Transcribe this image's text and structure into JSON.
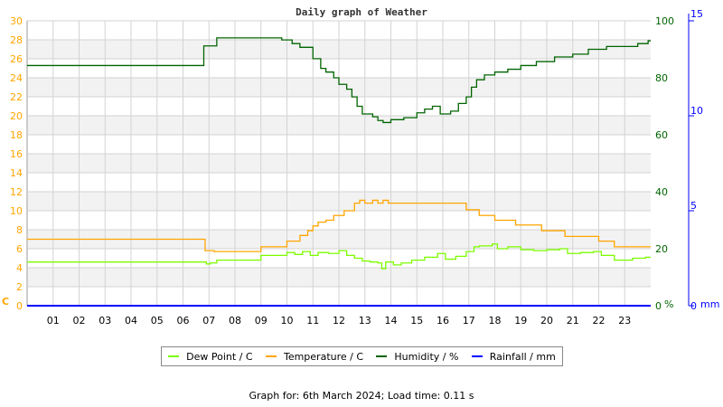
{
  "chart_data": {
    "type": "line",
    "title": "Daily graph of Weather",
    "x_ticks": [
      "01",
      "02",
      "03",
      "04",
      "05",
      "06",
      "07",
      "08",
      "09",
      "10",
      "11",
      "12",
      "13",
      "14",
      "15",
      "16",
      "17",
      "18",
      "19",
      "20",
      "21",
      "22",
      "23"
    ],
    "xlim": [
      0,
      24
    ],
    "axes": {
      "left": {
        "unit": "C",
        "ylim": [
          0,
          30
        ],
        "ticks": [
          0,
          2,
          4,
          6,
          8,
          10,
          12,
          14,
          16,
          18,
          20,
          22,
          24,
          26,
          28,
          30
        ],
        "color": "#ffa500"
      },
      "right1": {
        "unit": "%",
        "ylim": [
          0,
          100
        ],
        "ticks": [
          0,
          20,
          40,
          60,
          80,
          100
        ],
        "color": "#006400"
      },
      "right2": {
        "unit": "mm",
        "ylim": [
          0,
          15
        ],
        "ticks": [
          0,
          5,
          10,
          15
        ],
        "color": "#0000ff"
      }
    },
    "grid": true,
    "legend_placement": "bottom",
    "series": [
      {
        "name": "Dew Point / C",
        "axis": "left",
        "color": "#7cfc00",
        "step": true,
        "x": [
          0,
          6.9,
          7.05,
          7.3,
          9,
          10,
          10.3,
          10.6,
          10.9,
          11.2,
          11.6,
          12,
          12.3,
          12.6,
          12.9,
          13.2,
          13.5,
          13.65,
          13.8,
          14.1,
          14.4,
          14.8,
          15.3,
          15.8,
          16.1,
          16.5,
          16.9,
          17.2,
          17.4,
          17.9,
          18.1,
          18.5,
          19,
          19.5,
          20,
          20.5,
          20.8,
          21.3,
          21.8,
          22.1,
          22.6,
          23.3,
          23.8,
          24
        ],
        "y": [
          4.6,
          4.4,
          4.5,
          4.8,
          5.3,
          5.6,
          5.4,
          5.7,
          5.3,
          5.6,
          5.5,
          5.8,
          5.3,
          5.0,
          4.7,
          4.6,
          4.5,
          3.9,
          4.6,
          4.3,
          4.5,
          4.8,
          5.1,
          5.5,
          4.9,
          5.2,
          5.7,
          6.2,
          6.3,
          6.5,
          6.0,
          6.2,
          5.9,
          5.8,
          5.9,
          6.0,
          5.5,
          5.6,
          5.7,
          5.3,
          4.8,
          5.0,
          5.1,
          5.1
        ]
      },
      {
        "name": "Temperature / C",
        "axis": "left",
        "color": "#ffa500",
        "step": true,
        "x": [
          0,
          6.85,
          7.2,
          9,
          10,
          10.5,
          10.8,
          11,
          11.2,
          11.5,
          11.8,
          12.2,
          12.6,
          12.8,
          13,
          13.3,
          13.5,
          13.7,
          13.9,
          14.1,
          16.9,
          17.4,
          18,
          18.8,
          19.8,
          20.7,
          22,
          22.6,
          24
        ],
        "y": [
          7.0,
          5.8,
          5.7,
          6.2,
          6.8,
          7.4,
          7.9,
          8.4,
          8.8,
          9.0,
          9.5,
          10.0,
          10.8,
          11.1,
          10.8,
          11.1,
          10.8,
          11.1,
          10.8,
          10.8,
          10.1,
          9.5,
          9.0,
          8.5,
          7.9,
          7.3,
          6.8,
          6.2,
          6.2
        ]
      },
      {
        "name": "Humidity / %",
        "axis": "right1",
        "color": "#006400",
        "step": true,
        "x": [
          0,
          6.8,
          7.3,
          9.8,
          10.2,
          10.5,
          11,
          11.3,
          11.5,
          11.8,
          12,
          12.3,
          12.5,
          12.7,
          12.9,
          13.3,
          13.5,
          13.7,
          14,
          14.5,
          15,
          15.3,
          15.6,
          15.9,
          16.3,
          16.6,
          16.9,
          17.1,
          17.3,
          17.6,
          18,
          18.5,
          19,
          19.6,
          20.3,
          21,
          21.6,
          22.3,
          23.5,
          23.9,
          24
        ],
        "y": [
          84.3,
          91.2,
          94,
          93.3,
          92,
          90.7,
          86.7,
          83.3,
          82,
          80,
          77.7,
          76,
          73.3,
          70,
          67.3,
          66.3,
          65,
          64.3,
          65.3,
          66,
          67.7,
          69,
          70,
          67.3,
          68.3,
          71,
          73.3,
          76.7,
          79.3,
          81,
          82,
          83,
          84.3,
          85.7,
          87.3,
          88.3,
          90,
          91,
          92,
          93,
          93
        ]
      },
      {
        "name": "Rainfall / mm",
        "axis": "right2",
        "color": "#0000ff",
        "step": true,
        "x": [
          0,
          24
        ],
        "y": [
          0,
          0
        ]
      }
    ]
  },
  "footer": "Graph for: 6th March 2024; Load time: 0.11 s"
}
